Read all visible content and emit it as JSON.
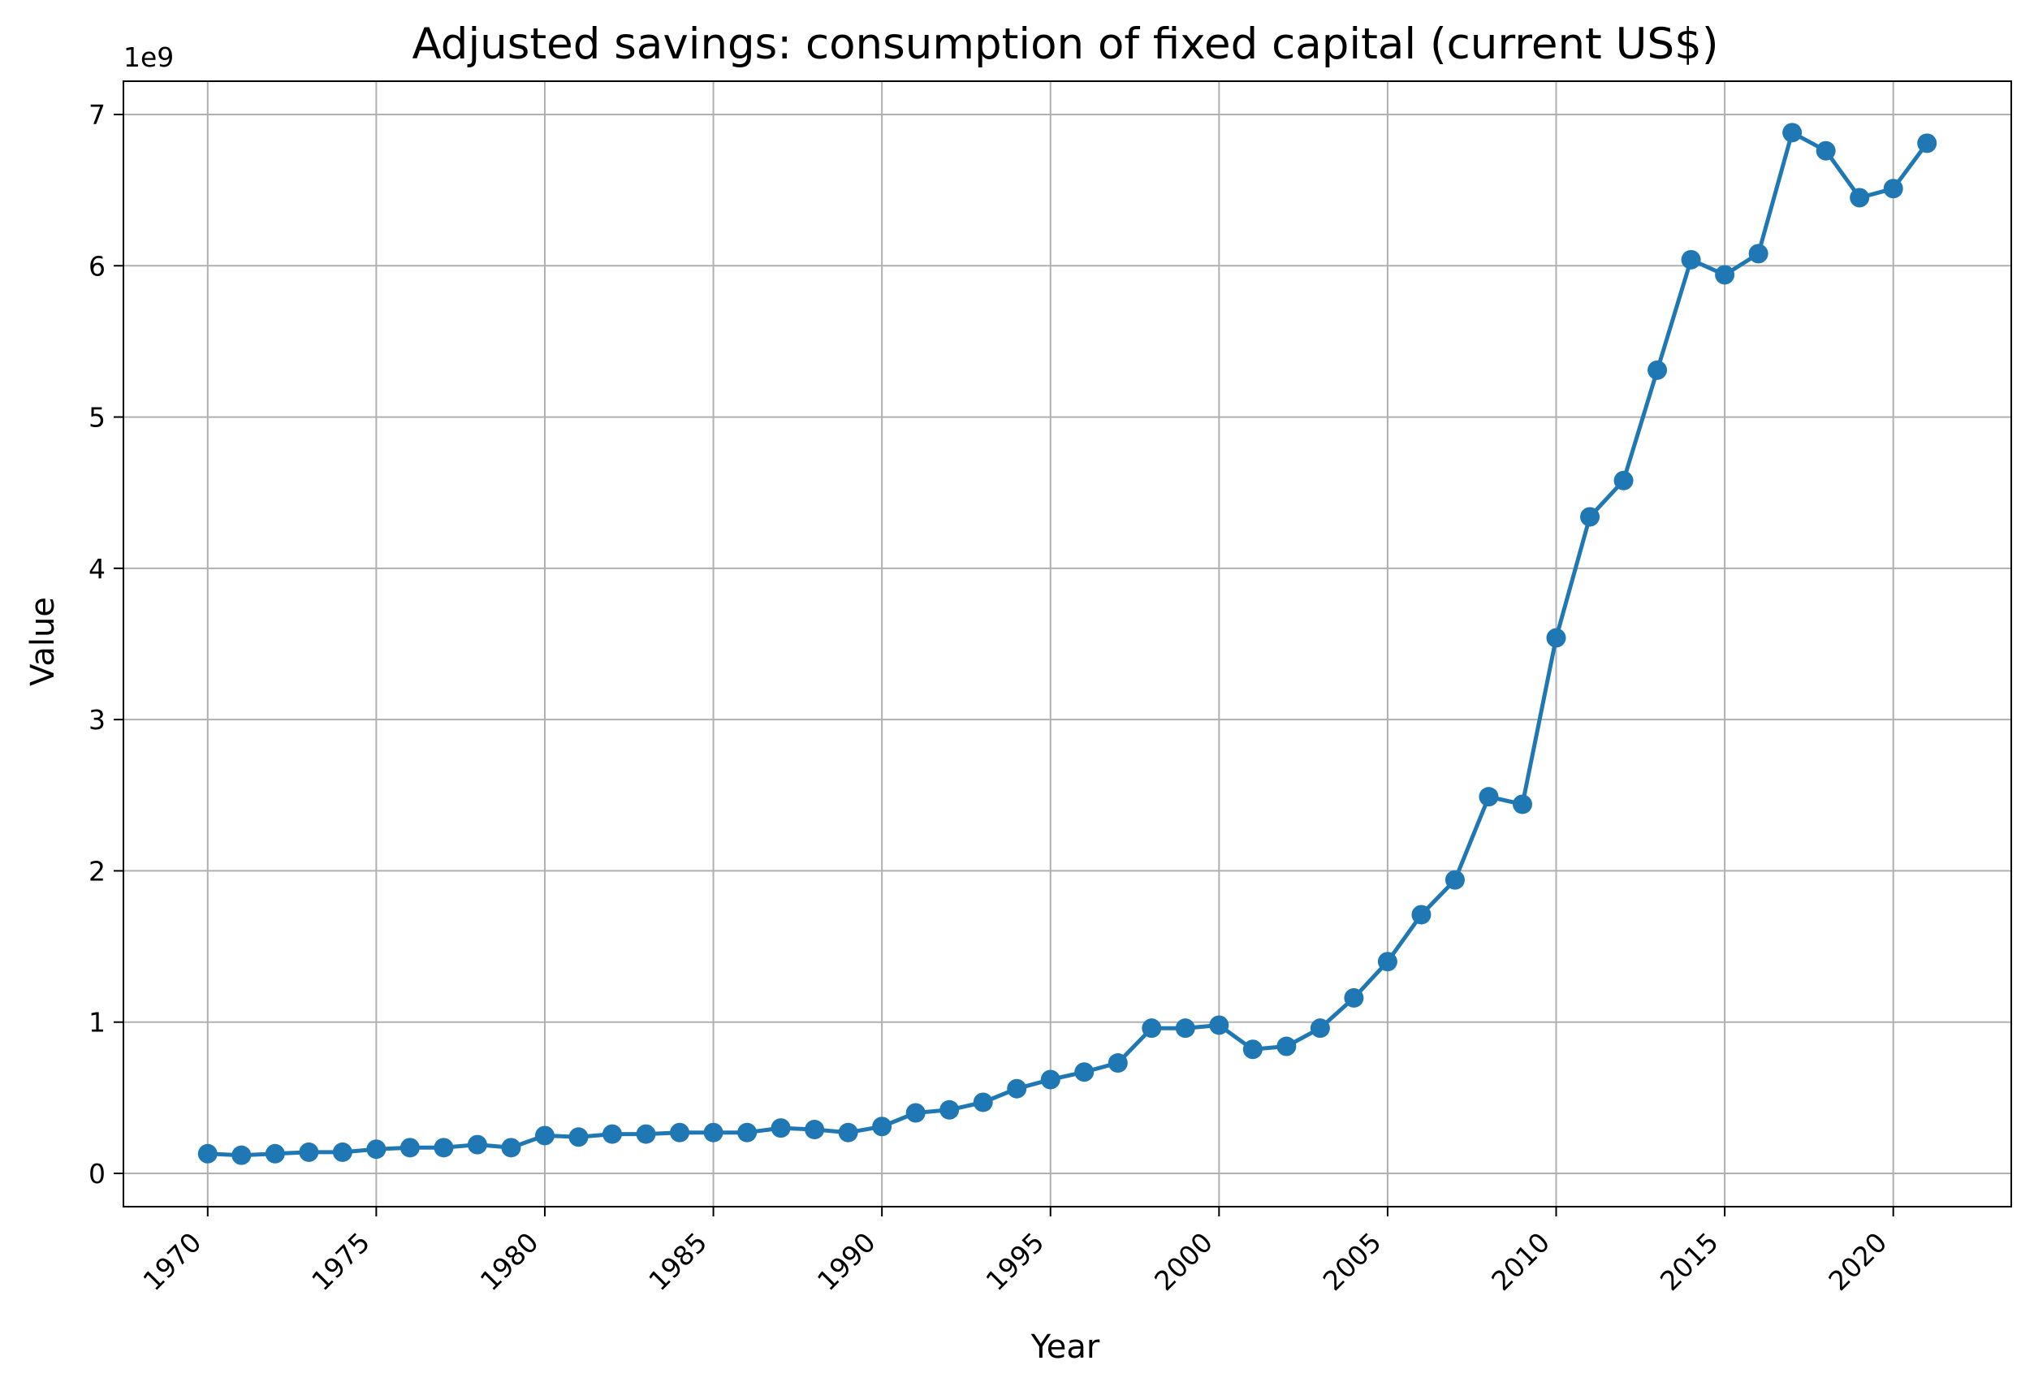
{
  "chart_data": {
    "type": "line",
    "title": "Adjusted savings: consumption of fixed capital (current US$)",
    "xlabel": "Year",
    "ylabel": "Value",
    "y_scale_label": "1e9",
    "y_multiplier": 1000000000,
    "xlim": [
      1967.5,
      2023.5
    ],
    "ylim": [
      -0.22,
      7.22
    ],
    "x_ticks": [
      1970,
      1975,
      1980,
      1985,
      1990,
      1995,
      2000,
      2005,
      2010,
      2015,
      2020
    ],
    "y_ticks": [
      0,
      1,
      2,
      3,
      4,
      5,
      6,
      7
    ],
    "grid": true,
    "series": [
      {
        "color": "#1f77b4",
        "marker": "circle",
        "x": [
          1970,
          1971,
          1972,
          1973,
          1974,
          1975,
          1976,
          1977,
          1978,
          1979,
          1980,
          1981,
          1982,
          1983,
          1984,
          1985,
          1986,
          1987,
          1988,
          1989,
          1990,
          1991,
          1992,
          1993,
          1994,
          1995,
          1996,
          1997,
          1998,
          1999,
          2000,
          2001,
          2002,
          2003,
          2004,
          2005,
          2006,
          2007,
          2008,
          2009,
          2010,
          2011,
          2012,
          2013,
          2014,
          2015,
          2016,
          2017,
          2018,
          2019,
          2020,
          2021
        ],
        "y": [
          0.13,
          0.12,
          0.13,
          0.14,
          0.14,
          0.16,
          0.17,
          0.17,
          0.19,
          0.17,
          0.25,
          0.24,
          0.26,
          0.26,
          0.27,
          0.27,
          0.27,
          0.3,
          0.29,
          0.27,
          0.31,
          0.4,
          0.42,
          0.47,
          0.56,
          0.62,
          0.67,
          0.73,
          0.96,
          0.96,
          0.98,
          0.82,
          0.84,
          0.96,
          1.16,
          1.4,
          1.71,
          1.94,
          2.49,
          2.44,
          3.54,
          4.34,
          4.58,
          5.31,
          6.04,
          5.94,
          6.08,
          6.88,
          6.76,
          6.45,
          6.51,
          6.81
        ]
      }
    ]
  }
}
